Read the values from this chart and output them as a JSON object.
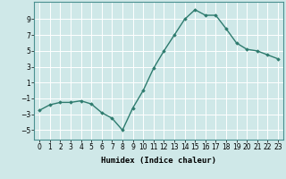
{
  "x": [
    0,
    1,
    2,
    3,
    4,
    5,
    6,
    7,
    8,
    9,
    10,
    11,
    12,
    13,
    14,
    15,
    16,
    17,
    18,
    19,
    20,
    21,
    22,
    23
  ],
  "y": [
    -2.5,
    -1.8,
    -1.5,
    -1.5,
    -1.3,
    -1.7,
    -2.8,
    -3.5,
    -5.0,
    -2.2,
    0.0,
    2.8,
    5.0,
    7.0,
    9.0,
    10.2,
    9.5,
    9.5,
    7.8,
    6.0,
    5.2,
    5.0,
    4.5,
    4.0
  ],
  "line_color": "#2e7b6e",
  "marker": "D",
  "marker_size": 1.8,
  "line_width": 1.0,
  "xlabel": "Humidex (Indice chaleur)",
  "xlabel_fontsize": 6.5,
  "ylabel_ticks": [
    -5,
    -3,
    -1,
    1,
    3,
    5,
    7,
    9
  ],
  "xtick_labels": [
    "0",
    "1",
    "2",
    "3",
    "4",
    "5",
    "6",
    "7",
    "8",
    "9",
    "10",
    "11",
    "12",
    "13",
    "14",
    "15",
    "16",
    "17",
    "18",
    "19",
    "20",
    "21",
    "22",
    "23"
  ],
  "xlim": [
    -0.5,
    23.5
  ],
  "ylim": [
    -6.2,
    11.2
  ],
  "bg_color": "#cfe8e8",
  "grid_color": "#ffffff",
  "tick_fontsize": 5.5,
  "title": ""
}
